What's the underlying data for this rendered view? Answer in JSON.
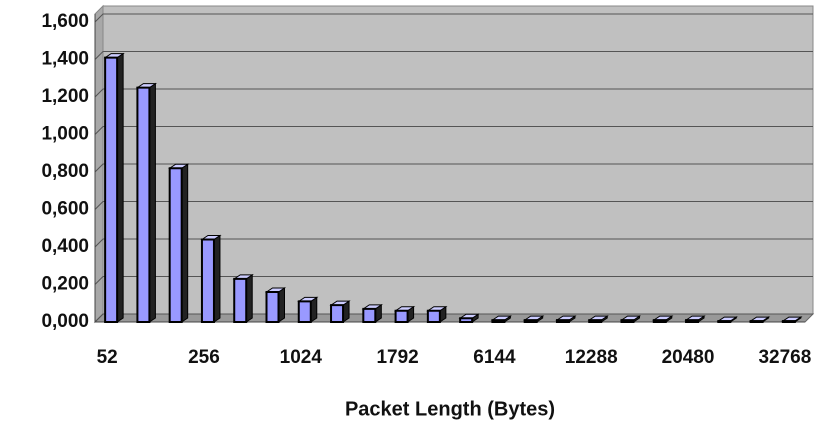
{
  "chart_data": {
    "type": "bar",
    "x_label": "Packet Length (Bytes)",
    "categories": [
      "52",
      null,
      null,
      "256",
      null,
      null,
      "1024",
      null,
      null,
      "1792",
      null,
      null,
      "6144",
      null,
      null,
      "12288",
      null,
      null,
      "20480",
      null,
      null,
      "32768"
    ],
    "values": [
      1.41,
      1.25,
      0.82,
      0.44,
      0.23,
      0.16,
      0.11,
      0.09,
      0.07,
      0.06,
      0.06,
      0.02,
      0.01,
      0.01,
      0.01,
      0.01,
      0.01,
      0.01,
      0.01,
      0.005,
      0.005,
      0.005
    ],
    "color": "#9999ff",
    "ylim": [
      0,
      1.6
    ],
    "yticks": [
      {
        "value": 0,
        "label": "0,000"
      },
      {
        "value": 0.2,
        "label": "0,200"
      },
      {
        "value": 0.4,
        "label": "0,400"
      },
      {
        "value": 0.6,
        "label": "0,600"
      },
      {
        "value": 0.8,
        "label": "0,800"
      },
      {
        "value": 1.0,
        "label": "1,000"
      },
      {
        "value": 1.2,
        "label": "1,200"
      },
      {
        "value": 1.4,
        "label": "1,400"
      },
      {
        "value": 1.6,
        "label": "1,600"
      }
    ],
    "grid": true
  }
}
